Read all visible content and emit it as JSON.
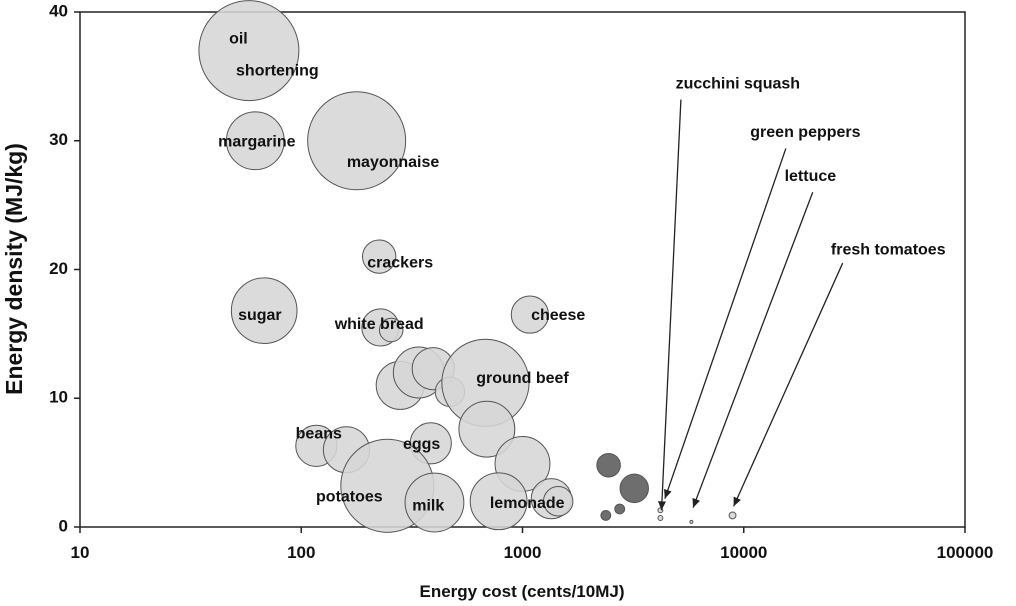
{
  "chart_data": {
    "type": "scatter",
    "title": "",
    "xlabel": "Energy cost (cents/10MJ)",
    "ylabel": "Energy density (MJ/kg)",
    "xscale": "log",
    "xlim": [
      10,
      100000
    ],
    "ylim": [
      0,
      40
    ],
    "xticks": [
      10,
      100,
      1000,
      10000,
      100000
    ],
    "xtick_labels": [
      "10",
      "100",
      "1000",
      "10000",
      "100000"
    ],
    "yticks": [
      0,
      10,
      20,
      30,
      40
    ],
    "ytick_labels": [
      "0",
      "10",
      "20",
      "30",
      "40"
    ],
    "grid": false,
    "legend": "none",
    "colors": {
      "bubble_light": "#d6d6d6",
      "bubble_dark": "#6e6e6e",
      "edge": "#555555",
      "axis": "#222222"
    },
    "points": [
      {
        "x": 58,
        "y": 37,
        "size": 10.2,
        "shade": "light"
      },
      {
        "x": 62,
        "y": 30,
        "size": 5.9,
        "shade": "light"
      },
      {
        "x": 178,
        "y": 30,
        "size": 10.0,
        "shade": "light"
      },
      {
        "x": 225,
        "y": 21,
        "size": 3.4,
        "shade": "light"
      },
      {
        "x": 68,
        "y": 16.8,
        "size": 6.7,
        "shade": "light"
      },
      {
        "x": 228,
        "y": 15.5,
        "size": 3.8,
        "shade": "light"
      },
      {
        "x": 255,
        "y": 15.3,
        "size": 2.4,
        "shade": "light"
      },
      {
        "x": 1080,
        "y": 16.5,
        "size": 3.8,
        "shade": "light"
      },
      {
        "x": 280,
        "y": 11,
        "size": 4.9,
        "shade": "light"
      },
      {
        "x": 340,
        "y": 12,
        "size": 5.2,
        "shade": "light"
      },
      {
        "x": 395,
        "y": 12.3,
        "size": 4.3,
        "shade": "light"
      },
      {
        "x": 470,
        "y": 10.5,
        "size": 3.0,
        "shade": "light"
      },
      {
        "x": 680,
        "y": 11.2,
        "size": 8.9,
        "shade": "light"
      },
      {
        "x": 690,
        "y": 7.6,
        "size": 5.7,
        "shade": "light"
      },
      {
        "x": 117,
        "y": 6.3,
        "size": 4.2,
        "shade": "light"
      },
      {
        "x": 160,
        "y": 6.0,
        "size": 4.7,
        "shade": "light"
      },
      {
        "x": 385,
        "y": 6.5,
        "size": 4.2,
        "shade": "light"
      },
      {
        "x": 1000,
        "y": 4.9,
        "size": 5.6,
        "shade": "light"
      },
      {
        "x": 245,
        "y": 3.2,
        "size": 9.5,
        "shade": "light"
      },
      {
        "x": 400,
        "y": 1.9,
        "size": 6.0,
        "shade": "light"
      },
      {
        "x": 780,
        "y": 2.0,
        "size": 5.8,
        "shade": "light"
      },
      {
        "x": 1350,
        "y": 2.2,
        "size": 4.1,
        "shade": "light"
      },
      {
        "x": 1450,
        "y": 2.0,
        "size": 3.0,
        "shade": "light"
      },
      {
        "x": 2450,
        "y": 4.8,
        "size": 2.4,
        "shade": "dark"
      },
      {
        "x": 3200,
        "y": 3.0,
        "size": 2.9,
        "shade": "dark"
      },
      {
        "x": 2750,
        "y": 1.4,
        "size": 1.0,
        "shade": "dark"
      },
      {
        "x": 2380,
        "y": 0.9,
        "size": 1.0,
        "shade": "dark"
      },
      {
        "x": 4200,
        "y": 1.3,
        "size": 0.5,
        "shade": "light"
      },
      {
        "x": 4200,
        "y": 0.7,
        "size": 0.5,
        "shade": "light"
      },
      {
        "x": 5800,
        "y": 0.4,
        "size": 0.3,
        "shade": "light"
      },
      {
        "x": 8900,
        "y": 0.9,
        "size": 0.7,
        "shade": "light"
      }
    ],
    "labels": [
      {
        "text": "oil",
        "x": 52,
        "y": 37.9
      },
      {
        "text": "shortening",
        "x": 78,
        "y": 35.4
      },
      {
        "text": "margarine",
        "x": 63,
        "y": 29.9
      },
      {
        "text": "mayonnaise",
        "x": 260,
        "y": 28.3
      },
      {
        "text": "crackers",
        "x": 280,
        "y": 20.5
      },
      {
        "text": "sugar",
        "x": 65,
        "y": 16.4
      },
      {
        "text": "white bread",
        "x": 225,
        "y": 15.7
      },
      {
        "text": "cheese",
        "x": 1450,
        "y": 16.4
      },
      {
        "text": "ground beef",
        "x": 1000,
        "y": 11.5
      },
      {
        "text": "beans",
        "x": 120,
        "y": 7.2
      },
      {
        "text": "eggs",
        "x": 350,
        "y": 6.4
      },
      {
        "text": "potatoes",
        "x": 165,
        "y": 2.3
      },
      {
        "text": "milk",
        "x": 375,
        "y": 1.6
      },
      {
        "text": "lemonade",
        "x": 1050,
        "y": 1.8
      }
    ],
    "annotations": [
      {
        "text": "zucchini squash",
        "text_x": 9400,
        "text_y": 34.4,
        "start_x": 5200,
        "start_y": 33.2,
        "target_x": 4250,
        "target_y": 1.3
      },
      {
        "text": "green peppers",
        "text_x": 19000,
        "text_y": 30.6,
        "start_x": 15500,
        "start_y": 29.4,
        "target_x": 4400,
        "target_y": 2.2
      },
      {
        "text": "lettuce",
        "text_x": 20000,
        "text_y": 27.2,
        "start_x": 20500,
        "start_y": 26.0,
        "target_x": 5900,
        "target_y": 1.5
      },
      {
        "text": "fresh tomatoes",
        "text_x": 45000,
        "text_y": 21.5,
        "start_x": 28000,
        "start_y": 20.5,
        "target_x": 9000,
        "target_y": 1.6
      }
    ]
  }
}
